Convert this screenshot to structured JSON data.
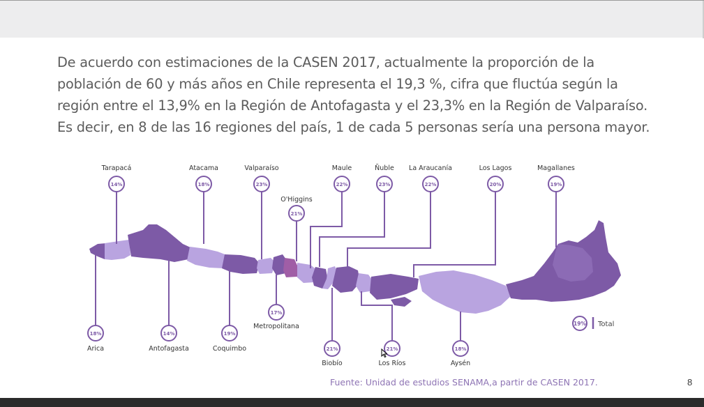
{
  "slide": {
    "paragraph": "De acuerdo con estimaciones de la CASEN 2017, actualmente la proporción de la población de 60 y más años en Chile representa el 19,3 %, cifra que fluctúa según la región entre el 13,9% en la Región de Antofagasta y el 23,3% en la Región de Valparaíso. Es decir, en 8 de las 16 regiones del país, 1 de cada 5 personas sería una persona mayor.",
    "source": "Fuente: Unidad de estudios SENAMA,a partir de CASEN 2017.",
    "page_number": "8"
  },
  "colors": {
    "dark_purple": "#7d5aa6",
    "light_purple": "#b9a4e0",
    "pink_purple": "#a05ea6",
    "text_gray": "#5c5c5c",
    "source_purple": "#8e74b4"
  },
  "regions_top": [
    {
      "name": "Tarapacá",
      "value": "14%"
    },
    {
      "name": "Atacama",
      "value": "18%"
    },
    {
      "name": "Valparaíso",
      "value": "23%"
    },
    {
      "name": "O'Higgins",
      "value": "21%"
    },
    {
      "name": "Maule",
      "value": "22%"
    },
    {
      "name": "Ñuble",
      "value": "23%"
    },
    {
      "name": "La Araucanía",
      "value": "22%"
    },
    {
      "name": "Los Lagos",
      "value": "20%"
    },
    {
      "name": "Magallanes",
      "value": "19%"
    }
  ],
  "regions_bottom": [
    {
      "name": "Arica",
      "value": "18%"
    },
    {
      "name": "Antofagasta",
      "value": "14%"
    },
    {
      "name": "Coquimbo",
      "value": "19%"
    },
    {
      "name": "Metropolitana",
      "value": "17%"
    },
    {
      "name": "Biobío",
      "value": "21%"
    },
    {
      "name": "Los Ríos",
      "value": "21%"
    },
    {
      "name": "Aysén",
      "value": "18%"
    }
  ],
  "total": {
    "value": "19%",
    "label": "Total"
  }
}
